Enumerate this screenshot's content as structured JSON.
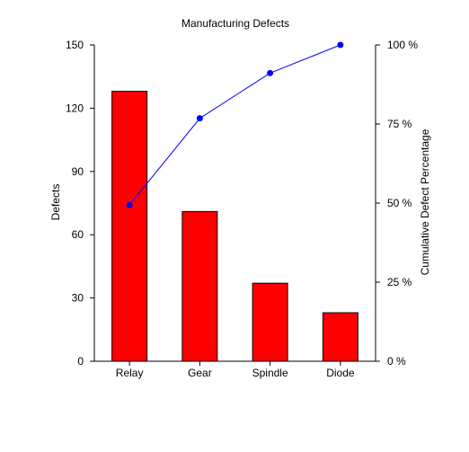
{
  "chart_data": {
    "type": "bar",
    "title": "Manufacturing Defects",
    "categories": [
      "Relay",
      "Gear",
      "Spindle",
      "Diode"
    ],
    "series": [
      {
        "values": [
          128,
          71,
          37,
          23
        ],
        "color": "#ff0000",
        "kind": "bar"
      },
      {
        "values": [
          49.4,
          76.8,
          91.1,
          100
        ],
        "color": "#0000ff",
        "kind": "line",
        "axis": "right"
      }
    ],
    "ylabel": "Defects",
    "ylim": [
      0,
      150
    ],
    "yticks": [
      0,
      30,
      60,
      90,
      120,
      150
    ],
    "y2label": "Cumulative Defect Percentage",
    "y2lim": [
      0,
      100
    ],
    "y2ticks": [
      "0 %",
      "25 %",
      "50 %",
      "75 %",
      "100 %"
    ],
    "grid": false,
    "legend": "none"
  }
}
